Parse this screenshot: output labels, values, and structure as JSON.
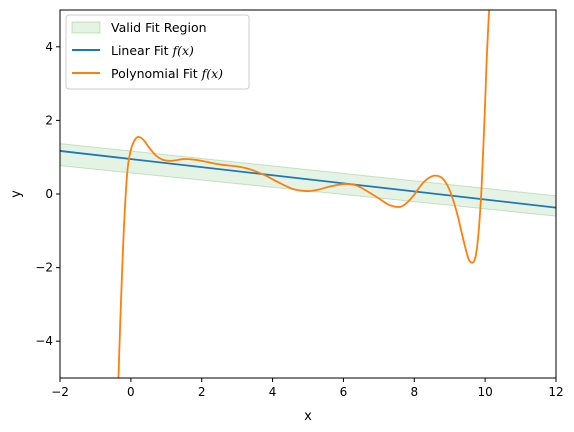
{
  "chart_data": {
    "type": "line",
    "title": "",
    "xlabel": "x",
    "ylabel": "y",
    "xlim": [
      -2,
      12
    ],
    "ylim": [
      -5,
      5
    ],
    "xticks": [
      -2,
      0,
      2,
      4,
      6,
      8,
      10,
      12
    ],
    "yticks": [
      -4,
      -2,
      0,
      2,
      4
    ],
    "xtick_labels": [
      "−2",
      "0",
      "2",
      "4",
      "6",
      "8",
      "10",
      "12"
    ],
    "ytick_labels": [
      "−4",
      "−2",
      "0",
      "2",
      "4"
    ],
    "grid": false,
    "legend_position": "top-left",
    "legend": [
      {
        "label": "Valid Fit Region",
        "kind": "patch",
        "color": "#2ca02c"
      },
      {
        "label": "Linear Fit ",
        "math": "f(x)",
        "kind": "line",
        "color": "#1f77b4"
      },
      {
        "label": "Polynomial Fit ",
        "math": "f(x)",
        "kind": "line",
        "color": "#ff7f0e"
      }
    ],
    "series": [
      {
        "name": "Linear Fit f(x)",
        "color": "#1f77b4",
        "x": [
          -2,
          12
        ],
        "y": [
          1.17,
          -0.37
        ]
      },
      {
        "name": "Valid Fit Region",
        "color": "#2ca02c",
        "x": [
          -2,
          12
        ],
        "y_upper": [
          1.37,
          -0.05
        ],
        "y_lower": [
          0.77,
          -0.6
        ]
      },
      {
        "name": "Polynomial Fit f(x)",
        "color": "#ff7f0e",
        "x": [
          -0.35,
          -0.3,
          -0.2,
          -0.1,
          0.0,
          0.1,
          0.2,
          0.3,
          0.4,
          0.5,
          0.7,
          0.9,
          1.1,
          1.3,
          1.5,
          1.8,
          2.0,
          2.3,
          2.6,
          3.0,
          3.4,
          3.8,
          4.2,
          4.6,
          5.0,
          5.3,
          5.6,
          6.0,
          6.3,
          6.5,
          6.8,
          7.0,
          7.3,
          7.6,
          7.8,
          8.0,
          8.2,
          8.4,
          8.6,
          8.8,
          9.0,
          9.2,
          9.4,
          9.55,
          9.7,
          9.8,
          9.9,
          10.0,
          10.05,
          10.1,
          10.15
        ],
        "y": [
          -5.0,
          -3.5,
          -1.0,
          0.6,
          1.2,
          1.45,
          1.55,
          1.52,
          1.42,
          1.28,
          1.05,
          0.93,
          0.9,
          0.92,
          0.95,
          0.93,
          0.9,
          0.84,
          0.79,
          0.75,
          0.66,
          0.5,
          0.3,
          0.13,
          0.08,
          0.12,
          0.2,
          0.27,
          0.25,
          0.17,
          0.0,
          -0.12,
          -0.3,
          -0.35,
          -0.23,
          -0.02,
          0.25,
          0.43,
          0.5,
          0.42,
          0.1,
          -0.5,
          -1.3,
          -1.8,
          -1.8,
          -1.2,
          0.2,
          2.5,
          3.8,
          4.8,
          5.5
        ]
      }
    ]
  }
}
